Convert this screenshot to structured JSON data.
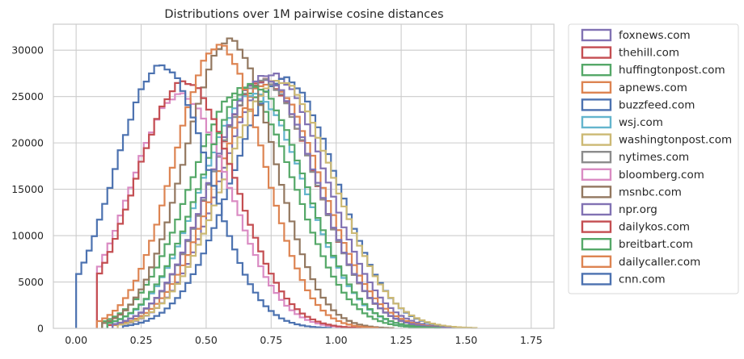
{
  "chart_data": {
    "type": "histogram",
    "title": "Distributions over 1M pairwise cosine distances",
    "xlabel": "",
    "ylabel": "",
    "xlim": [
      -0.0875,
      1.8375
    ],
    "ylim": [
      0,
      32800
    ],
    "xticks": [
      0.0,
      0.25,
      0.5,
      0.75,
      1.0,
      1.25,
      1.5,
      1.75
    ],
    "xtick_labels": [
      "0.00",
      "0.25",
      "0.50",
      "0.75",
      "1.00",
      "1.25",
      "1.50",
      "1.75"
    ],
    "yticks": [
      0,
      5000,
      10000,
      15000,
      20000,
      25000,
      30000
    ],
    "ytick_labels": [
      "0",
      "5000",
      "10000",
      "15000",
      "20000",
      "25000",
      "30000"
    ],
    "grid": true,
    "histtype": "step",
    "bin_width": 0.02,
    "x_range": [
      0.0,
      1.75
    ],
    "legend_position": "outside-right",
    "series": [
      {
        "name": "foxnews.com",
        "color": "#8172b3",
        "peak_x": 0.76,
        "peak_y": 27300,
        "sigma": 0.2,
        "start": 0.18
      },
      {
        "name": "thehill.com",
        "color": "#c44e52",
        "peak_x": 0.72,
        "peak_y": 26800,
        "sigma": 0.2,
        "start": 0.12
      },
      {
        "name": "huffingtonpost.com",
        "color": "#55a868",
        "peak_x": 0.64,
        "peak_y": 25800,
        "sigma": 0.2,
        "start": 0.1
      },
      {
        "name": "apnews.com",
        "color": "#dd8452",
        "peak_x": 0.74,
        "peak_y": 26500,
        "sigma": 0.2,
        "start": 0.14
      },
      {
        "name": "buzzfeed.com",
        "color": "#4c72b0",
        "peak_x": 0.8,
        "peak_y": 26900,
        "sigma": 0.2,
        "start": 0.18
      },
      {
        "name": "wsj.com",
        "color": "#64b5cd",
        "peak_x": 0.68,
        "peak_y": 25300,
        "sigma": 0.2,
        "start": 0.12
      },
      {
        "name": "washingtonpost.com",
        "color": "#ccb974",
        "peak_x": 0.78,
        "peak_y": 26700,
        "sigma": 0.21,
        "start": 0.16
      },
      {
        "name": "nytimes.com",
        "color": "#8c8c8c",
        "peak_x": 0.72,
        "peak_y": 26700,
        "sigma": 0.2,
        "start": 0.14
      },
      {
        "name": "bloomberg.com",
        "color": "#da8bc3",
        "peak_x": 0.4,
        "peak_y": 25200,
        "sigma": 0.19,
        "start": 0.08
      },
      {
        "name": "msnbc.com",
        "color": "#937860",
        "peak_x": 0.59,
        "peak_y": 31100,
        "sigma": 0.17,
        "start": 0.1
      },
      {
        "name": "npr.org",
        "color": "#8172b3",
        "peak_x": 0.72,
        "peak_y": 27100,
        "sigma": 0.2,
        "start": 0.14
      },
      {
        "name": "dailykos.com",
        "color": "#c44e52",
        "peak_x": 0.42,
        "peak_y": 26600,
        "sigma": 0.19,
        "start": 0.08
      },
      {
        "name": "breitbart.com",
        "color": "#55a868",
        "peak_x": 0.68,
        "peak_y": 26200,
        "sigma": 0.2,
        "start": 0.12
      },
      {
        "name": "dailycaller.com",
        "color": "#dd8452",
        "peak_x": 0.55,
        "peak_y": 30500,
        "sigma": 0.17,
        "start": 0.08
      },
      {
        "name": "cnn.com",
        "color": "#4c72b0",
        "peak_x": 0.33,
        "peak_y": 28300,
        "sigma": 0.18,
        "start": 0.0
      }
    ]
  }
}
